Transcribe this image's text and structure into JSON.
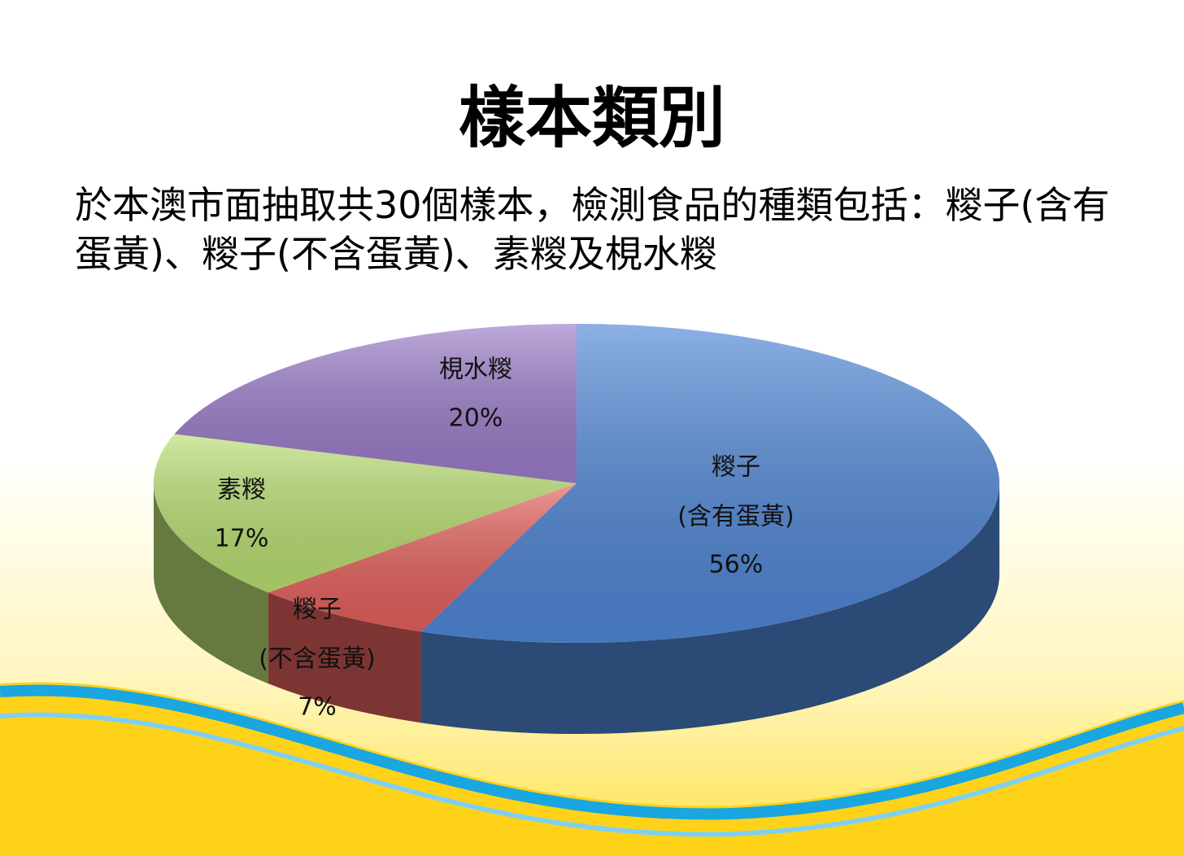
{
  "chart_data": {
    "type": "pie3d",
    "title": "樣本類別",
    "subtitle": "於本澳市面抽取共30個樣本，檢測食品的種類包括：糉子(含有蛋黃)、糉子(不含蛋黃)、素糉及梘水糉",
    "categories": [
      [
        "糉子",
        "(含有蛋黃)"
      ],
      [
        "糉子",
        "(不含蛋黃)"
      ],
      [
        "素糉"
      ],
      [
        "梘水糉"
      ]
    ],
    "values": [
      56,
      7,
      17,
      20
    ],
    "value_labels": [
      "56%",
      "7%",
      "17%",
      "20%"
    ],
    "colors": [
      "#4f86d6",
      "#e4605c",
      "#b9de72",
      "#9b7cc9"
    ]
  }
}
